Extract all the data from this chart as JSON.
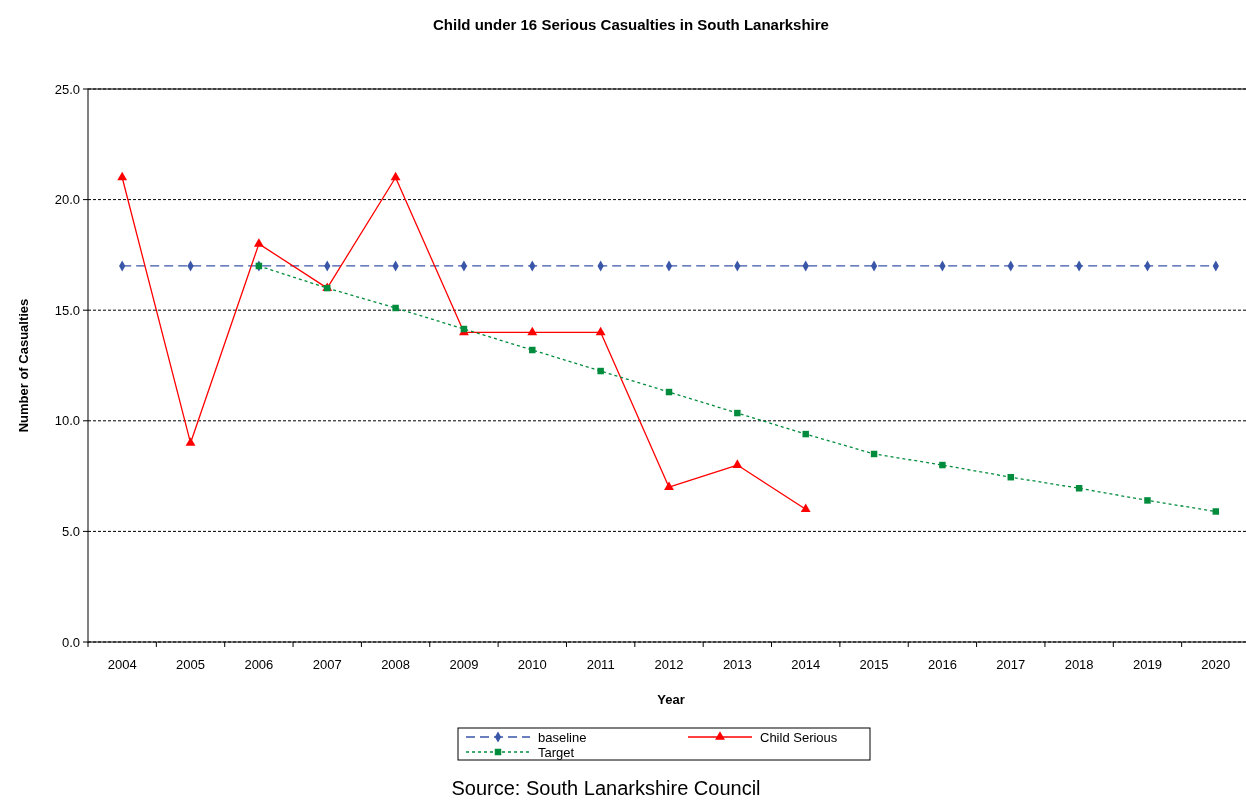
{
  "chart_data": {
    "type": "line",
    "title": "Child under 16 Serious Casualties in South Lanarkshire",
    "xlabel": "Year",
    "ylabel": "Number of Casualties",
    "categories": [
      "2004",
      "2005",
      "2006",
      "2007",
      "2008",
      "2009",
      "2010",
      "2011",
      "2012",
      "2013",
      "2014",
      "2015",
      "2016",
      "2017",
      "2018",
      "2019",
      "2020"
    ],
    "series": [
      {
        "name": "baseline",
        "color": "#3a56a8",
        "marker": "diamond",
        "line_style": "dashed",
        "values": [
          17,
          17,
          17,
          17,
          17,
          17,
          17,
          17,
          17,
          17,
          17,
          17,
          17,
          17,
          17,
          17,
          17
        ]
      },
      {
        "name": "Child Serious",
        "color": "#ff0000",
        "marker": "triangle",
        "line_style": "solid",
        "values": [
          21,
          9,
          18,
          16,
          21,
          14,
          14,
          14,
          7,
          8,
          6,
          null,
          null,
          null,
          null,
          null,
          null
        ]
      },
      {
        "name": "Target",
        "color": "#008c3c",
        "marker": "square",
        "line_style": "dotted",
        "values": [
          null,
          null,
          17,
          16,
          15.1,
          14.15,
          13.2,
          12.25,
          11.3,
          10.35,
          9.4,
          8.5,
          8,
          7.45,
          6.95,
          6.4,
          5.9
        ]
      }
    ],
    "ylim": [
      0,
      25
    ],
    "yticks": [
      {
        "value": 0,
        "label": "0.0"
      },
      {
        "value": 5,
        "label": "5.0"
      },
      {
        "value": 10,
        "label": "10.0"
      },
      {
        "value": 15,
        "label": "15.0"
      },
      {
        "value": 20,
        "label": "20.0"
      },
      {
        "value": 25,
        "label": "25.0"
      }
    ],
    "grid": "y",
    "legend": "bottom",
    "annotations": [
      "Source: South Lanarkshire Council"
    ]
  }
}
